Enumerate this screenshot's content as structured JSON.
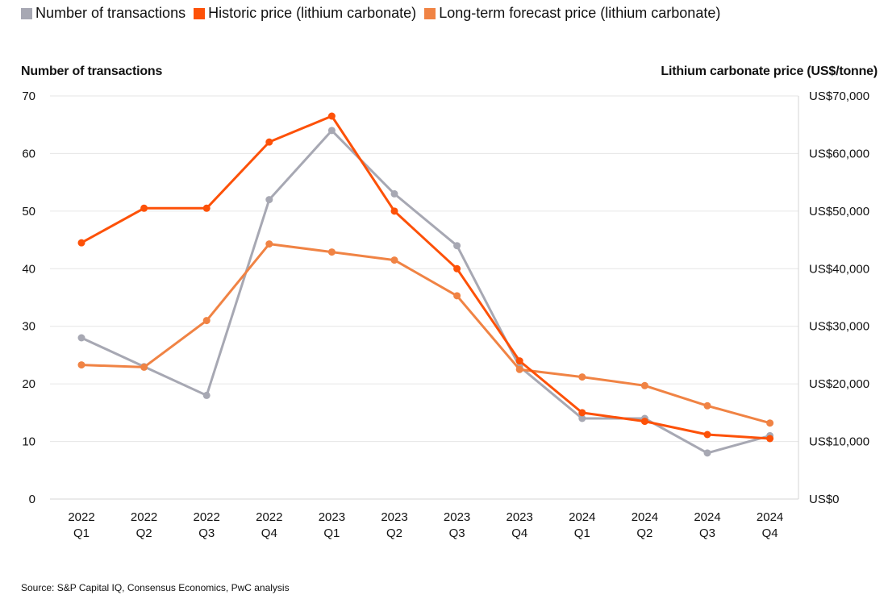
{
  "chart_data": {
    "type": "line",
    "legend": [
      {
        "name": "Number of transactions",
        "color": "#a7a8b3"
      },
      {
        "name": "Historic price (lithium carbonate)",
        "color": "#fd5108"
      },
      {
        "name": "Long-term forecast price (lithium carbonate)",
        "color": "#f08344"
      }
    ],
    "categories": [
      [
        "2022",
        "Q1"
      ],
      [
        "2022",
        "Q2"
      ],
      [
        "2022",
        "Q3"
      ],
      [
        "2022",
        "Q4"
      ],
      [
        "2023",
        "Q1"
      ],
      [
        "2023",
        "Q2"
      ],
      [
        "2023",
        "Q3"
      ],
      [
        "2023",
        "Q4"
      ],
      [
        "2024",
        "Q1"
      ],
      [
        "2024",
        "Q2"
      ],
      [
        "2024",
        "Q3"
      ],
      [
        "2024",
        "Q4"
      ]
    ],
    "series": [
      {
        "name": "Number of transactions",
        "axis": "left",
        "color": "#a7a8b3",
        "values": [
          28,
          23,
          18,
          52,
          64,
          53,
          44,
          23,
          14,
          14,
          8,
          11
        ]
      },
      {
        "name": "Historic price (lithium carbonate)",
        "axis": "right",
        "color": "#fd5108",
        "values": [
          44500,
          50500,
          50500,
          62000,
          66500,
          50000,
          40000,
          24000,
          15000,
          13500,
          11200,
          10500
        ]
      },
      {
        "name": "Long-term forecast price (lithium carbonate)",
        "axis": "right",
        "color": "#f08344",
        "values": [
          23300,
          22900,
          31000,
          44300,
          42900,
          41500,
          35300,
          22500,
          21200,
          19700,
          16200,
          13200
        ]
      }
    ],
    "ylabel_left": "Number of transactions",
    "ylabel_right": "Lithium carbonate price (US$/tonne)",
    "yticks_left": [
      "0",
      "10",
      "20",
      "30",
      "40",
      "50",
      "60",
      "70"
    ],
    "yticks_right": [
      "US$0",
      "US$10,000",
      "US$20,000",
      "US$30,000",
      "US$40,000",
      "US$50,000",
      "US$60,000",
      "US$70,000"
    ],
    "ylim_left": [
      0,
      70
    ],
    "ylim_right": [
      0,
      70000
    ],
    "grid": true
  },
  "source": "Source: S&P Capital IQ, Consensus Economics, PwC analysis"
}
